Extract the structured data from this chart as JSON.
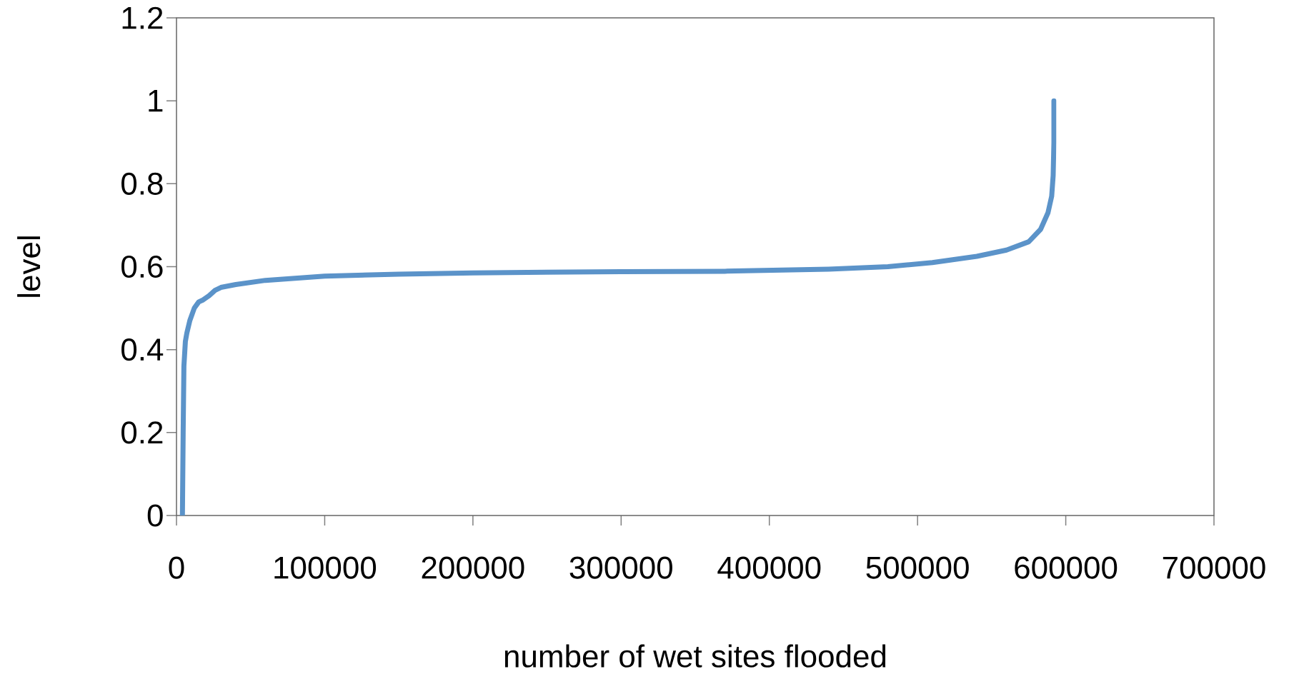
{
  "chart_data": {
    "type": "line",
    "xlabel": "number of wet sites flooded",
    "ylabel": "level",
    "series": [
      {
        "color": "#5b93c9",
        "x": [
          4000,
          4500,
          5000,
          6000,
          7000,
          9000,
          12000,
          15000,
          18000,
          22000,
          26000,
          30000,
          40000,
          60000,
          100000,
          150000,
          200000,
          300000,
          370000,
          440000,
          480000,
          510000,
          540000,
          560000,
          575000,
          583000,
          588000,
          590500,
          591500,
          592000,
          592000
        ],
        "values": [
          0,
          0.2,
          0.36,
          0.42,
          0.44,
          0.47,
          0.5,
          0.515,
          0.52,
          0.53,
          0.543,
          0.55,
          0.557,
          0.567,
          0.577,
          0.582,
          0.585,
          0.588,
          0.589,
          0.594,
          0.6,
          0.61,
          0.625,
          0.64,
          0.66,
          0.69,
          0.73,
          0.77,
          0.82,
          0.9,
          1.0
        ]
      }
    ],
    "xlim": [
      0,
      700000
    ],
    "ylim": [
      0,
      1.2
    ],
    "xticks": [
      0,
      100000,
      200000,
      300000,
      400000,
      500000,
      600000,
      700000
    ],
    "yticks": [
      0,
      0.2,
      0.4,
      0.6,
      0.8,
      1,
      1.2
    ],
    "marker": "none",
    "line_style": "solid"
  }
}
